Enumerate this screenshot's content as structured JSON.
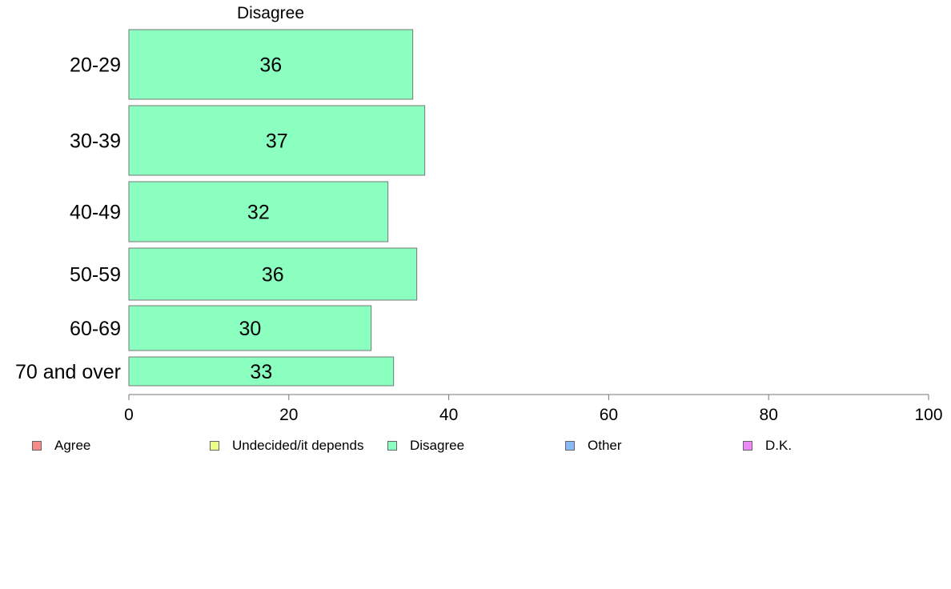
{
  "chart_data": {
    "type": "bar",
    "orientation": "horizontal",
    "title": "Disagree",
    "categories": [
      "20-29",
      "30-39",
      "40-49",
      "50-59",
      "60-69",
      "70 and over"
    ],
    "series": [
      {
        "name": "Disagree",
        "color": "#8bffbf",
        "values": [
          35.5,
          37,
          32.4,
          36,
          30.3,
          33.1
        ]
      }
    ],
    "data_labels": [
      "36",
      "37",
      "32",
      "36",
      "30",
      "33"
    ],
    "xlim": [
      0,
      100
    ],
    "xticks": [
      0,
      20,
      40,
      60,
      80,
      100
    ],
    "grid": false,
    "legend_position": "bottom"
  },
  "legend": {
    "items": [
      {
        "label": "Agree",
        "color": "#f88a8a"
      },
      {
        "label": "Undecided/it depends",
        "color": "#eeff88"
      },
      {
        "label": "Disagree",
        "color": "#8bffbf"
      },
      {
        "label": "Other",
        "color": "#88baf8"
      },
      {
        "label": "D.K.",
        "color": "#ee88f8"
      }
    ]
  }
}
